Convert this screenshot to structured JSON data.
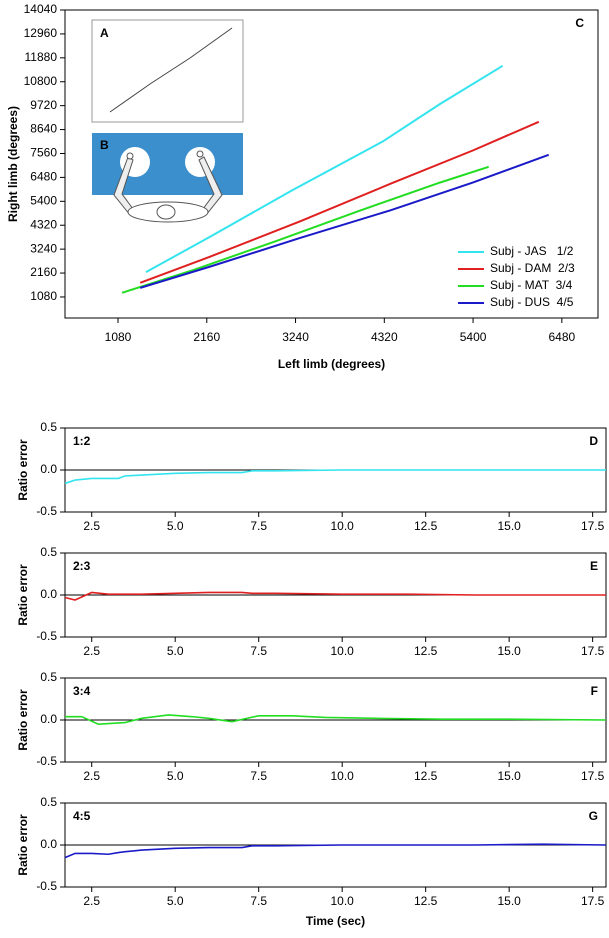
{
  "chart_data": [
    {
      "type": "line",
      "panel_label": "C",
      "inset_labels": [
        "A",
        "B"
      ],
      "xlabel": "Left limb (degrees)",
      "ylabel": "Right limb (degrees)",
      "xlim": [
        435,
        6920
      ],
      "ylim": [
        130,
        14040
      ],
      "xticks": [
        1080,
        2160,
        3240,
        4320,
        5400,
        6480
      ],
      "yticks": [
        1080,
        2160,
        3240,
        4320,
        5400,
        6480,
        7560,
        8640,
        9720,
        10800,
        11880,
        12960,
        14040
      ],
      "legend": "lower right",
      "series": [
        {
          "name": "Subj - JAS   1/2",
          "color": "#33e4ee",
          "x": [
            1420,
            2200,
            3200,
            4300,
            5000,
            5760
          ],
          "values": [
            2200,
            3800,
            5900,
            8100,
            9800,
            11520
          ]
        },
        {
          "name": "Subj - DAM  2/3",
          "color": "#e02020",
          "x": [
            1350,
            2200,
            3300,
            4400,
            5400,
            6200
          ],
          "values": [
            1720,
            2900,
            4500,
            6200,
            7700,
            8990
          ]
        },
        {
          "name": "Subj - MAT  3/4",
          "color": "#22dd22",
          "x": [
            1130,
            2000,
            3000,
            4000,
            5000,
            5590
          ],
          "values": [
            1270,
            2300,
            3600,
            4950,
            6250,
            6960
          ]
        },
        {
          "name": "Subj - DUS  4/5",
          "color": "#1a1ac8",
          "x": [
            1350,
            2200,
            3300,
            4400,
            5400,
            6320
          ],
          "values": [
            1490,
            2450,
            3750,
            5000,
            6250,
            7500
          ]
        }
      ]
    },
    {
      "type": "line",
      "ratio_label": "1:2",
      "panel_label": "D",
      "ylabel": "Ratio error",
      "zero_line": true,
      "xlim": [
        1.7,
        17.9
      ],
      "ylim": [
        -0.5,
        0.5
      ],
      "xticks": [
        2.5,
        {
          "value": 5,
          "label": "5.0"
        },
        7.5,
        {
          "value": 10,
          "label": "10.0"
        },
        12.5,
        {
          "value": 15,
          "label": "15.0"
        },
        17.5
      ],
      "yticks": [
        -0.5,
        {
          "value": 0,
          "label": "0.0"
        },
        0.5
      ],
      "series": [
        {
          "color": "#33e4ee",
          "x": [
            1.7,
            2.0,
            2.5,
            3.0,
            3.3,
            3.5,
            4.0,
            5.0,
            6.0,
            7.0,
            7.3,
            8.0,
            10.0,
            12.0,
            14.0,
            16.0,
            17.9
          ],
          "values": [
            -0.16,
            -0.12,
            -0.1,
            -0.1,
            -0.1,
            -0.07,
            -0.06,
            -0.04,
            -0.03,
            -0.03,
            -0.01,
            -0.01,
            0,
            0,
            0,
            0,
            0
          ]
        }
      ]
    },
    {
      "type": "line",
      "ratio_label": "2:3",
      "panel_label": "E",
      "ylabel": "Ratio error",
      "zero_line": true,
      "xlim": [
        1.7,
        17.9
      ],
      "ylim": [
        -0.5,
        0.5
      ],
      "xticks": [
        2.5,
        {
          "value": 5,
          "label": "5.0"
        },
        7.5,
        {
          "value": 10,
          "label": "10.0"
        },
        12.5,
        {
          "value": 15,
          "label": "15.0"
        },
        17.5
      ],
      "yticks": [
        -0.5,
        {
          "value": 0,
          "label": "0.0"
        },
        0.5
      ],
      "series": [
        {
          "color": "#e02020",
          "x": [
            1.7,
            2.0,
            2.5,
            3.0,
            3.3,
            3.5,
            4.0,
            5.0,
            6.0,
            7.0,
            7.3,
            8.0,
            10.0,
            12.0,
            14.0,
            16.0,
            17.9
          ],
          "values": [
            -0.03,
            -0.06,
            0.03,
            0.01,
            0.01,
            0.01,
            0.01,
            0.02,
            0.03,
            0.03,
            0.02,
            0.02,
            0.01,
            0.01,
            0,
            0,
            0
          ]
        }
      ]
    },
    {
      "type": "line",
      "ratio_label": "3:4",
      "panel_label": "F",
      "ylabel": "Ratio error",
      "zero_line": true,
      "xlim": [
        1.7,
        17.9
      ],
      "ylim": [
        -0.5,
        0.5
      ],
      "xticks": [
        2.5,
        {
          "value": 5,
          "label": "5.0"
        },
        7.5,
        {
          "value": 10,
          "label": "10.0"
        },
        12.5,
        {
          "value": 15,
          "label": "15.0"
        },
        17.5
      ],
      "yticks": [
        -0.5,
        {
          "value": 0,
          "label": "0.0"
        },
        0.5
      ],
      "series": [
        {
          "color": "#22dd22",
          "x": [
            1.7,
            2.2,
            2.7,
            3.5,
            4.0,
            4.8,
            5.5,
            6.0,
            6.7,
            7.5,
            8.5,
            9.5,
            11,
            13,
            15,
            17.9
          ],
          "values": [
            0.04,
            0.04,
            -0.05,
            -0.03,
            0.02,
            0.06,
            0.04,
            0.02,
            -0.02,
            0.05,
            0.05,
            0.03,
            0.02,
            0.01,
            0.01,
            0
          ]
        }
      ]
    },
    {
      "type": "line",
      "ratio_label": "4:5",
      "panel_label": "G",
      "ylabel": "Ratio error",
      "zero_line": true,
      "xlabel": "Time (sec)",
      "xlim": [
        1.7,
        17.9
      ],
      "ylim": [
        -0.5,
        0.5
      ],
      "xticks": [
        2.5,
        {
          "value": 5,
          "label": "5.0"
        },
        7.5,
        {
          "value": 10,
          "label": "10.0"
        },
        12.5,
        {
          "value": 15,
          "label": "15.0"
        },
        17.5
      ],
      "yticks": [
        -0.5,
        {
          "value": 0,
          "label": "0.0"
        },
        0.5
      ],
      "series": [
        {
          "color": "#1a1ac8",
          "x": [
            1.7,
            2.0,
            2.5,
            3.0,
            3.3,
            3.5,
            4.0,
            5.0,
            6.0,
            7.0,
            7.3,
            8.0,
            10.0,
            12.0,
            14.0,
            16.0,
            17.9
          ],
          "values": [
            -0.15,
            -0.1,
            -0.1,
            -0.11,
            -0.09,
            -0.08,
            -0.06,
            -0.04,
            -0.03,
            -0.03,
            -0.01,
            -0.01,
            0,
            0,
            0,
            0.01,
            0
          ]
        }
      ]
    }
  ]
}
